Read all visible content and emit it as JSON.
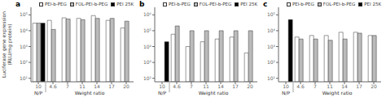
{
  "chart_data": [
    {
      "type": "bar",
      "title": "a",
      "y_label": "Luciferase gene expression\n(RLU/mg protein)",
      "categories": [
        "10",
        "4.6",
        "7",
        "11",
        "14",
        "17",
        "20"
      ],
      "series": [
        {
          "name": "PEI-b-PEG",
          "color": "#ffffff",
          "values": [
            30000,
            45000,
            65000,
            60000,
            90000,
            45000,
            15000
          ]
        },
        {
          "name": "FOL-PEI-b-PEG",
          "color": "#bbbbbb",
          "values": [
            30000,
            12000,
            55000,
            50000,
            60000,
            60000,
            40000
          ]
        },
        {
          "name": "PEI 25K",
          "color": "#000000",
          "values": [
            30000,
            null,
            null,
            null,
            null,
            null,
            null
          ]
        }
      ],
      "ylim": [
        6,
        300000
      ],
      "yticks": [
        {
          "value": 10,
          "label": "10¹"
        },
        {
          "value": 100,
          "label": "10²"
        },
        {
          "value": 1000,
          "label": "10³"
        },
        {
          "value": 10000,
          "label": "10⁴"
        },
        {
          "value": 100000,
          "label": "10⁵"
        }
      ],
      "log": "y",
      "grid": false,
      "legend": "upper right",
      "annotations": [
        "N/P",
        "Weight ratio"
      ]
    },
    {
      "type": "bar",
      "title": "b",
      "categories": [
        "10",
        "4.6",
        "7",
        "11",
        "14",
        "17",
        "20"
      ],
      "series": [
        {
          "name": "PEI-b-PEG",
          "color": "#ffffff",
          "values": [
            null,
            60000,
            10000,
            20000,
            30000,
            40000,
            4000
          ]
        },
        {
          "name": "FOL-PEI-b-PEG",
          "color": "#bbbbbb",
          "values": [
            null,
            200000,
            100000,
            100000,
            100000,
            100000,
            100000
          ]
        },
        {
          "name": "PEI 25K",
          "color": "#000000",
          "values": [
            20000,
            null,
            null,
            null,
            null,
            null,
            null
          ]
        }
      ],
      "ylim": [
        60,
        3000000
      ],
      "yticks": [
        {
          "value": 100,
          "label": "10²"
        },
        {
          "value": 1000,
          "label": "10³"
        },
        {
          "value": 10000,
          "label": "10⁴"
        },
        {
          "value": 100000,
          "label": "10⁵"
        },
        {
          "value": 1000000,
          "label": "10⁶"
        }
      ],
      "log": "y",
      "grid": false,
      "legend": "upper right",
      "annotations": [
        "N/P",
        "Weight ratio"
      ]
    },
    {
      "type": "bar",
      "title": "c",
      "categories": [
        "10",
        "4.6",
        "7",
        "11",
        "14",
        "17",
        "20"
      ],
      "series": [
        {
          "name": "PEI-b-PEG",
          "color": "#ffffff",
          "values": [
            null,
            4000,
            5000,
            5000,
            8000,
            8000,
            5000
          ]
        },
        {
          "name": "FOL-PEI-b-PEG",
          "color": "#bbbbbb",
          "values": [
            null,
            3000,
            3000,
            2500,
            3000,
            7000,
            5000
          ]
        },
        {
          "name": "PEI 25K",
          "color": "#000000",
          "values": [
            50000,
            null,
            null,
            null,
            null,
            null,
            null
          ]
        }
      ],
      "ylim": [
        6,
        300000
      ],
      "yticks": [
        {
          "value": 10,
          "label": "10¹"
        },
        {
          "value": 100,
          "label": "10²"
        },
        {
          "value": 1000,
          "label": "10³"
        },
        {
          "value": 10000,
          "label": "10⁴"
        },
        {
          "value": 100000,
          "label": "10⁵"
        }
      ],
      "log": "y",
      "grid": false,
      "legend": "upper right",
      "annotations": [
        "N/P",
        "Weight ratio"
      ]
    }
  ]
}
